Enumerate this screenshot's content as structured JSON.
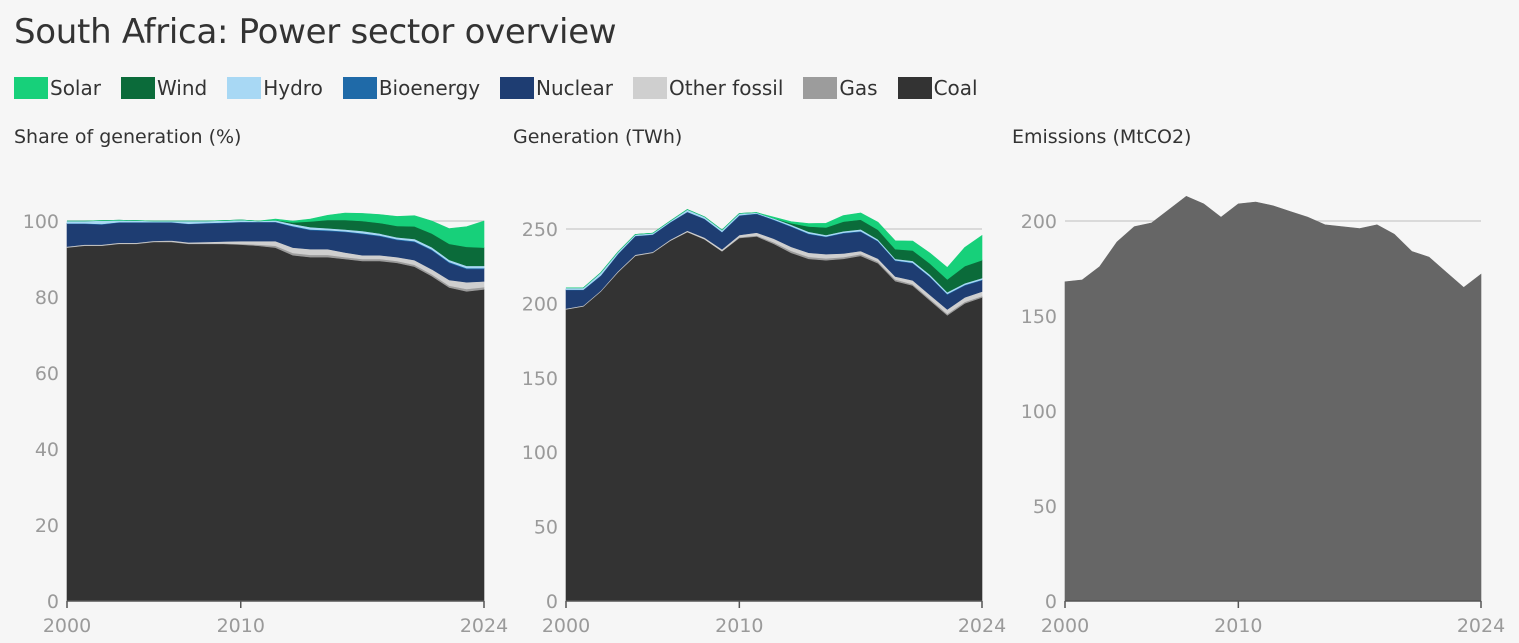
{
  "title": "South Africa: Power sector overview",
  "legend": [
    {
      "name": "Solar",
      "color": "#17d07a"
    },
    {
      "name": "Wind",
      "color": "#0b6b3a"
    },
    {
      "name": "Hydro",
      "color": "#a8d8f4"
    },
    {
      "name": "Bioenergy",
      "color": "#1f6aa8"
    },
    {
      "name": "Nuclear",
      "color": "#1e3d72"
    },
    {
      "name": "Other fossil",
      "color": "#cfcfcf"
    },
    {
      "name": "Gas",
      "color": "#9c9c9c"
    },
    {
      "name": "Coal",
      "color": "#333333"
    }
  ],
  "panels": [
    {
      "title": "Share of generation (%)"
    },
    {
      "title": "Generation (TWh)"
    },
    {
      "title": "Emissions (MtCO2)"
    }
  ],
  "chart_data": [
    {
      "type": "area",
      "stacked": true,
      "title": "Share of generation (%)",
      "x": [
        2000,
        2001,
        2002,
        2003,
        2004,
        2005,
        2006,
        2007,
        2008,
        2009,
        2010,
        2011,
        2012,
        2013,
        2014,
        2015,
        2016,
        2017,
        2018,
        2019,
        2020,
        2021,
        2022,
        2023,
        2024
      ],
      "ylim": [
        0,
        100
      ],
      "yticks": [
        0,
        20,
        40,
        60,
        80,
        100
      ],
      "xticks": [
        2000,
        2010,
        2024
      ],
      "grid": true,
      "series": [
        {
          "name": "Coal",
          "color": "#333333",
          "values": [
            93.0,
            93.5,
            93.5,
            94.0,
            94.0,
            94.5,
            94.5,
            94.0,
            94.0,
            94.0,
            93.8,
            93.5,
            93.0,
            91.0,
            90.5,
            90.5,
            90.0,
            89.5,
            89.5,
            89.0,
            88.0,
            85.5,
            82.5,
            81.5,
            82.0
          ]
        },
        {
          "name": "Gas",
          "color": "#9c9c9c",
          "values": [
            0.1,
            0.1,
            0.1,
            0.1,
            0.1,
            0.1,
            0.1,
            0.1,
            0.1,
            0.1,
            0.2,
            0.3,
            0.5,
            0.6,
            0.6,
            0.6,
            0.5,
            0.5,
            0.5,
            0.5,
            0.5,
            0.5,
            0.5,
            0.6,
            0.6
          ]
        },
        {
          "name": "Other fossil",
          "color": "#cfcfcf",
          "values": [
            0.2,
            0.2,
            0.2,
            0.2,
            0.2,
            0.2,
            0.3,
            0.3,
            0.4,
            0.5,
            0.7,
            0.9,
            1.2,
            1.4,
            1.5,
            1.5,
            1.2,
            1.0,
            1.0,
            1.0,
            1.2,
            1.3,
            1.5,
            1.8,
            1.5
          ]
        },
        {
          "name": "Nuclear",
          "color": "#1e3d72",
          "values": [
            6.0,
            5.5,
            5.3,
            5.3,
            5.3,
            4.8,
            4.7,
            4.8,
            4.9,
            4.9,
            5.0,
            5.0,
            5.0,
            5.5,
            5.0,
            4.8,
            5.4,
            5.6,
            5.0,
            4.5,
            4.8,
            5.0,
            4.5,
            3.5,
            3.3
          ]
        },
        {
          "name": "Bioenergy",
          "color": "#1f6aa8",
          "values": [
            0.1,
            0.1,
            0.1,
            0.1,
            0.1,
            0.1,
            0.1,
            0.1,
            0.1,
            0.1,
            0.1,
            0.1,
            0.1,
            0.2,
            0.2,
            0.2,
            0.2,
            0.2,
            0.2,
            0.2,
            0.2,
            0.2,
            0.2,
            0.2,
            0.2
          ]
        },
        {
          "name": "Hydro",
          "color": "#a8d8f4",
          "values": [
            0.6,
            0.6,
            0.9,
            0.5,
            0.4,
            0.3,
            0.3,
            0.7,
            0.5,
            0.5,
            0.5,
            0.2,
            0.4,
            0.5,
            0.6,
            0.5,
            0.5,
            0.6,
            0.5,
            0.5,
            0.6,
            0.6,
            0.6,
            0.6,
            0.6
          ]
        },
        {
          "name": "Wind",
          "color": "#0b6b3a",
          "values": [
            0,
            0,
            0,
            0,
            0,
            0,
            0,
            0,
            0,
            0,
            0,
            0,
            0,
            0.4,
            1.5,
            2.2,
            2.5,
            2.6,
            2.8,
            3.0,
            3.3,
            3.6,
            4.2,
            5.0,
            4.8
          ]
        },
        {
          "name": "Solar",
          "color": "#17d07a",
          "values": [
            0,
            0,
            0,
            0,
            0,
            0,
            0,
            0,
            0,
            0,
            0,
            0,
            0.3,
            0.4,
            0.6,
            1.2,
            1.8,
            2.0,
            2.2,
            2.5,
            2.8,
            3.3,
            4.0,
            5.3,
            7.0
          ]
        }
      ]
    },
    {
      "type": "area",
      "stacked": true,
      "title": "Generation (TWh)",
      "x": [
        2000,
        2001,
        2002,
        2003,
        2004,
        2005,
        2006,
        2007,
        2008,
        2009,
        2010,
        2011,
        2012,
        2013,
        2014,
        2015,
        2016,
        2017,
        2018,
        2019,
        2020,
        2021,
        2022,
        2023,
        2024
      ],
      "ylim": [
        0,
        275
      ],
      "yticks": [
        0,
        50,
        100,
        150,
        200,
        250
      ],
      "xticks": [
        2000,
        2010,
        2024
      ],
      "grid": true,
      "series": [
        {
          "name": "Coal",
          "color": "#333333",
          "values": [
            196,
            198,
            208,
            221,
            232,
            234,
            242,
            248,
            243,
            235,
            244,
            245,
            240,
            234,
            230,
            229,
            230,
            232,
            227,
            215,
            212,
            202,
            192,
            200,
            204
          ]
        },
        {
          "name": "Gas",
          "color": "#9c9c9c",
          "values": [
            0.2,
            0.2,
            0.2,
            0.2,
            0.2,
            0.2,
            0.2,
            0.2,
            0.2,
            0.2,
            0.5,
            0.6,
            1.0,
            1.3,
            1.3,
            1.3,
            1.1,
            1.1,
            1.1,
            1.1,
            1.0,
            1.0,
            1.0,
            1.0,
            1.0
          ]
        },
        {
          "name": "Other fossil",
          "color": "#cfcfcf",
          "values": [
            0.4,
            0.4,
            0.4,
            0.5,
            0.5,
            0.5,
            0.6,
            0.7,
            1.0,
            1.2,
            1.5,
            2.0,
            2.5,
            2.7,
            2.8,
            2.8,
            2.5,
            2.1,
            2.0,
            2.0,
            2.5,
            2.7,
            3.0,
            3.0,
            3.0
          ]
        },
        {
          "name": "Nuclear",
          "color": "#1e3d72",
          "values": [
            12.5,
            10.5,
            10.0,
            11.5,
            12.5,
            11.5,
            11.5,
            12.5,
            12.5,
            11.5,
            13.0,
            12.5,
            12.5,
            13.5,
            12.5,
            11.5,
            13.5,
            13.0,
            11.5,
            10.5,
            11.5,
            12.0,
            10.0,
            8.0,
            7.5
          ]
        },
        {
          "name": "Bioenergy",
          "color": "#1f6aa8",
          "values": [
            0.2,
            0.2,
            0.2,
            0.2,
            0.2,
            0.2,
            0.2,
            0.2,
            0.2,
            0.2,
            0.3,
            0.3,
            0.3,
            0.4,
            0.4,
            0.4,
            0.4,
            0.4,
            0.4,
            0.4,
            0.4,
            0.4,
            0.4,
            0.4,
            0.4
          ]
        },
        {
          "name": "Hydro",
          "color": "#a8d8f4",
          "values": [
            1.2,
            1.2,
            1.8,
            1.2,
            1.0,
            0.8,
            0.8,
            1.5,
            1.2,
            1.2,
            1.2,
            0.6,
            0.8,
            1.0,
            1.2,
            1.0,
            1.0,
            1.2,
            1.0,
            1.0,
            1.2,
            1.2,
            1.2,
            1.2,
            1.2
          ]
        },
        {
          "name": "Wind",
          "color": "#0b6b3a",
          "values": [
            0,
            0,
            0,
            0,
            0,
            0,
            0,
            0,
            0,
            0,
            0,
            0,
            0,
            1.0,
            3.5,
            5.0,
            6.5,
            6.5,
            6.5,
            6.5,
            7.0,
            7.5,
            8.5,
            11.5,
            12.0
          ]
        },
        {
          "name": "Solar",
          "color": "#17d07a",
          "values": [
            0,
            0,
            0,
            0,
            0,
            0,
            0,
            0,
            0,
            0,
            0,
            0,
            0.8,
            1.0,
            2.0,
            2.8,
            4.0,
            4.5,
            5.0,
            5.6,
            6.3,
            7.0,
            8.0,
            12.5,
            16.5
          ]
        }
      ]
    },
    {
      "type": "area",
      "stacked": false,
      "title": "Emissions (MtCO2)",
      "x": [
        2000,
        2001,
        2002,
        2003,
        2004,
        2005,
        2006,
        2007,
        2008,
        2009,
        2010,
        2011,
        2012,
        2013,
        2014,
        2015,
        2016,
        2017,
        2018,
        2019,
        2020,
        2021,
        2022,
        2023,
        2024
      ],
      "ylim": [
        0,
        225
      ],
      "yticks": [
        0,
        50,
        100,
        150,
        200
      ],
      "xticks": [
        2000,
        2010,
        2024
      ],
      "grid": true,
      "series": [
        {
          "name": "Emissions",
          "color": "#666666",
          "values": [
            168,
            169,
            176,
            189,
            197,
            199,
            206,
            213,
            209,
            202,
            209,
            210,
            208,
            205,
            202,
            198,
            197,
            196,
            198,
            193,
            184,
            181,
            173,
            165,
            172
          ]
        }
      ]
    }
  ]
}
